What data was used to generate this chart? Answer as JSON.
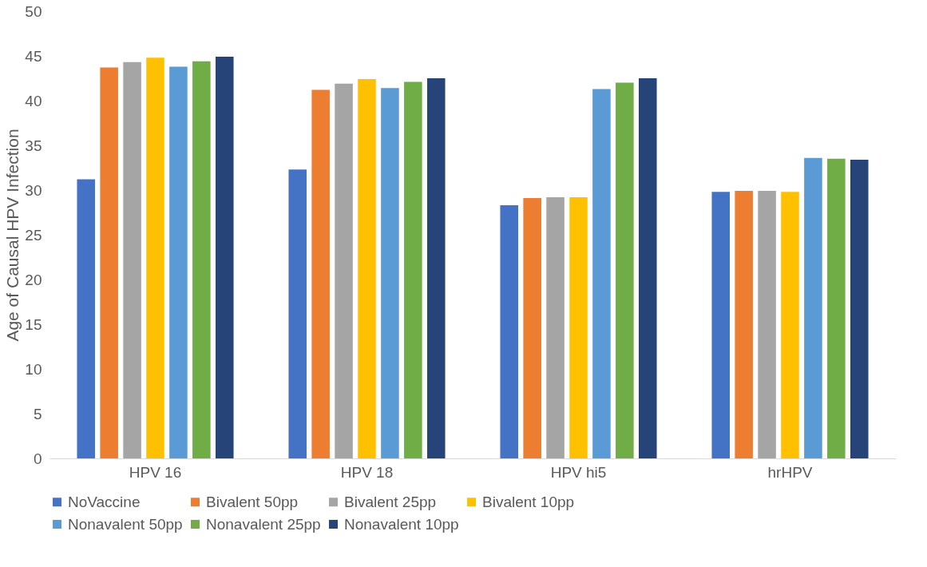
{
  "chart_data": {
    "type": "bar",
    "ylabel": "Age of Causal HPV Infection",
    "categories": [
      "HPV 16",
      "HPV 18",
      "HPV hi5",
      "hrHPV"
    ],
    "series": [
      {
        "name": "NoVaccine",
        "color": "#4472c4",
        "values": [
          31.2,
          32.3,
          28.3,
          29.8
        ]
      },
      {
        "name": "Bivalent 50pp",
        "color": "#ed7d31",
        "values": [
          43.7,
          41.2,
          29.1,
          29.9
        ]
      },
      {
        "name": "Bivalent 25pp",
        "color": "#a5a5a5",
        "values": [
          44.3,
          41.9,
          29.2,
          29.9
        ]
      },
      {
        "name": "Bivalent 10pp",
        "color": "#ffc000",
        "values": [
          44.8,
          42.4,
          29.2,
          29.8
        ]
      },
      {
        "name": "Nonavalent 50pp",
        "color": "#5b9bd5",
        "values": [
          43.8,
          41.4,
          41.3,
          33.6
        ]
      },
      {
        "name": "Nonavalent 25pp",
        "color": "#70ad47",
        "values": [
          44.4,
          42.1,
          42.0,
          33.5
        ]
      },
      {
        "name": "Nonavalent 10pp",
        "color": "#264478",
        "values": [
          44.9,
          42.5,
          42.5,
          33.4
        ]
      }
    ],
    "ylim": [
      0,
      50
    ],
    "yticks": [
      0,
      5,
      10,
      15,
      20,
      25,
      30,
      35,
      40,
      45,
      50
    ],
    "grid": false,
    "legend": "bottom"
  }
}
